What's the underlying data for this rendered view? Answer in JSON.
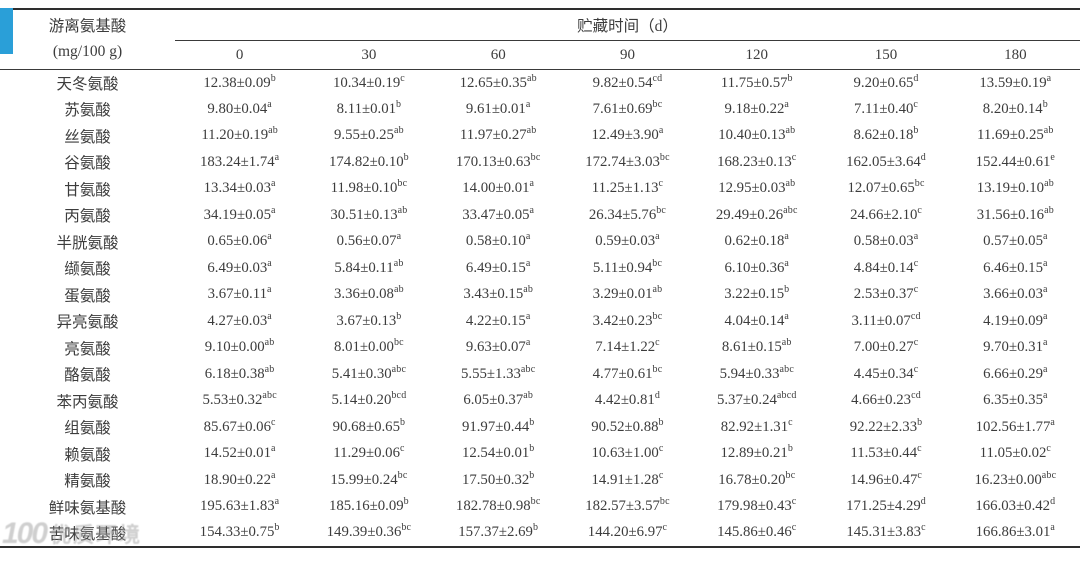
{
  "accent": {
    "corner_mark_color": "#2a9fd8"
  },
  "table": {
    "header": {
      "row_group_label_line1": "游离氨基酸",
      "row_group_label_line2": "(mg/100 g)",
      "span_label": "贮藏时间（d）",
      "columns": [
        "0",
        "30",
        "60",
        "90",
        "120",
        "150",
        "180"
      ]
    },
    "rows": [
      {
        "label": "天冬氨酸",
        "values": [
          {
            "v": "12.38±0.09",
            "s": "b"
          },
          {
            "v": "10.34±0.19",
            "s": "c"
          },
          {
            "v": "12.65±0.35",
            "s": "ab"
          },
          {
            "v": "9.82±0.54",
            "s": "cd"
          },
          {
            "v": "11.75±0.57",
            "s": "b"
          },
          {
            "v": "9.20±0.65",
            "s": "d"
          },
          {
            "v": "13.59±0.19",
            "s": "a"
          }
        ]
      },
      {
        "label": "苏氨酸",
        "values": [
          {
            "v": "9.80±0.04",
            "s": "a"
          },
          {
            "v": "8.11±0.01",
            "s": "b"
          },
          {
            "v": "9.61±0.01",
            "s": "a"
          },
          {
            "v": "7.61±0.69",
            "s": "bc"
          },
          {
            "v": "9.18±0.22",
            "s": "a"
          },
          {
            "v": "7.11±0.40",
            "s": "c"
          },
          {
            "v": "8.20±0.14",
            "s": "b"
          }
        ]
      },
      {
        "label": "丝氨酸",
        "values": [
          {
            "v": "11.20±0.19",
            "s": "ab"
          },
          {
            "v": "9.55±0.25",
            "s": "ab"
          },
          {
            "v": "11.97±0.27",
            "s": "ab"
          },
          {
            "v": "12.49±3.90",
            "s": "a"
          },
          {
            "v": "10.40±0.13",
            "s": "ab"
          },
          {
            "v": "8.62±0.18",
            "s": "b"
          },
          {
            "v": "11.69±0.25",
            "s": "ab"
          }
        ]
      },
      {
        "label": "谷氨酸",
        "values": [
          {
            "v": "183.24±1.74",
            "s": "a"
          },
          {
            "v": "174.82±0.10",
            "s": "b"
          },
          {
            "v": "170.13±0.63",
            "s": "bc"
          },
          {
            "v": "172.74±3.03",
            "s": "bc"
          },
          {
            "v": "168.23±0.13",
            "s": "c"
          },
          {
            "v": "162.05±3.64",
            "s": "d"
          },
          {
            "v": "152.44±0.61",
            "s": "e"
          }
        ]
      },
      {
        "label": "甘氨酸",
        "values": [
          {
            "v": "13.34±0.03",
            "s": "a"
          },
          {
            "v": "11.98±0.10",
            "s": "bc"
          },
          {
            "v": "14.00±0.01",
            "s": "a"
          },
          {
            "v": "11.25±1.13",
            "s": "c"
          },
          {
            "v": "12.95±0.03",
            "s": "ab"
          },
          {
            "v": "12.07±0.65",
            "s": "bc"
          },
          {
            "v": "13.19±0.10",
            "s": "ab"
          }
        ]
      },
      {
        "label": "丙氨酸",
        "values": [
          {
            "v": "34.19±0.05",
            "s": "a"
          },
          {
            "v": "30.51±0.13",
            "s": "ab"
          },
          {
            "v": "33.47±0.05",
            "s": "a"
          },
          {
            "v": "26.34±5.76",
            "s": "bc"
          },
          {
            "v": "29.49±0.26",
            "s": "abc"
          },
          {
            "v": "24.66±2.10",
            "s": "c"
          },
          {
            "v": "31.56±0.16",
            "s": "ab"
          }
        ]
      },
      {
        "label": "半胱氨酸",
        "values": [
          {
            "v": "0.65±0.06",
            "s": "a"
          },
          {
            "v": "0.56±0.07",
            "s": "a"
          },
          {
            "v": "0.58±0.10",
            "s": "a"
          },
          {
            "v": "0.59±0.03",
            "s": "a"
          },
          {
            "v": "0.62±0.18",
            "s": "a"
          },
          {
            "v": "0.58±0.03",
            "s": "a"
          },
          {
            "v": "0.57±0.05",
            "s": "a"
          }
        ]
      },
      {
        "label": "缬氨酸",
        "values": [
          {
            "v": "6.49±0.03",
            "s": "a"
          },
          {
            "v": "5.84±0.11",
            "s": "ab"
          },
          {
            "v": "6.49±0.15",
            "s": "a"
          },
          {
            "v": "5.11±0.94",
            "s": "bc"
          },
          {
            "v": "6.10±0.36",
            "s": "a"
          },
          {
            "v": "4.84±0.14",
            "s": "c"
          },
          {
            "v": "6.46±0.15",
            "s": "a"
          }
        ]
      },
      {
        "label": "蛋氨酸",
        "values": [
          {
            "v": "3.67±0.11",
            "s": "a"
          },
          {
            "v": "3.36±0.08",
            "s": "ab"
          },
          {
            "v": "3.43±0.15",
            "s": "ab"
          },
          {
            "v": "3.29±0.01",
            "s": "ab"
          },
          {
            "v": "3.22±0.15",
            "s": "b"
          },
          {
            "v": "2.53±0.37",
            "s": "c"
          },
          {
            "v": "3.66±0.03",
            "s": "a"
          }
        ]
      },
      {
        "label": "异亮氨酸",
        "values": [
          {
            "v": "4.27±0.03",
            "s": "a"
          },
          {
            "v": "3.67±0.13",
            "s": "b"
          },
          {
            "v": "4.22±0.15",
            "s": "a"
          },
          {
            "v": "3.42±0.23",
            "s": "bc"
          },
          {
            "v": "4.04±0.14",
            "s": "a"
          },
          {
            "v": "3.11±0.07",
            "s": "cd"
          },
          {
            "v": "4.19±0.09",
            "s": "a"
          }
        ]
      },
      {
        "label": "亮氨酸",
        "values": [
          {
            "v": "9.10±0.00",
            "s": "ab"
          },
          {
            "v": "8.01±0.00",
            "s": "bc"
          },
          {
            "v": "9.63±0.07",
            "s": "a"
          },
          {
            "v": "7.14±1.22",
            "s": "c"
          },
          {
            "v": "8.61±0.15",
            "s": "ab"
          },
          {
            "v": "7.00±0.27",
            "s": "c"
          },
          {
            "v": "9.70±0.31",
            "s": "a"
          }
        ]
      },
      {
        "label": "酪氨酸",
        "values": [
          {
            "v": "6.18±0.38",
            "s": "ab"
          },
          {
            "v": "5.41±0.30",
            "s": "abc"
          },
          {
            "v": "5.55±1.33",
            "s": "abc"
          },
          {
            "v": "4.77±0.61",
            "s": "bc"
          },
          {
            "v": "5.94±0.33",
            "s": "abc"
          },
          {
            "v": "4.45±0.34",
            "s": "c"
          },
          {
            "v": "6.66±0.29",
            "s": "a"
          }
        ]
      },
      {
        "label": "苯丙氨酸",
        "values": [
          {
            "v": "5.53±0.32",
            "s": "abc"
          },
          {
            "v": "5.14±0.20",
            "s": "bcd"
          },
          {
            "v": "6.05±0.37",
            "s": "ab"
          },
          {
            "v": "4.42±0.81",
            "s": "d"
          },
          {
            "v": "5.37±0.24",
            "s": "abcd"
          },
          {
            "v": "4.66±0.23",
            "s": "cd"
          },
          {
            "v": "6.35±0.35",
            "s": "a"
          }
        ]
      },
      {
        "label": "组氨酸",
        "values": [
          {
            "v": "85.67±0.06",
            "s": "c"
          },
          {
            "v": "90.68±0.65",
            "s": "b"
          },
          {
            "v": "91.97±0.44",
            "s": "b"
          },
          {
            "v": "90.52±0.88",
            "s": "b"
          },
          {
            "v": "82.92±1.31",
            "s": "c"
          },
          {
            "v": "92.22±2.33",
            "s": "b"
          },
          {
            "v": "102.56±1.77",
            "s": "a"
          }
        ]
      },
      {
        "label": "赖氨酸",
        "values": [
          {
            "v": "14.52±0.01",
            "s": "a"
          },
          {
            "v": "11.29±0.06",
            "s": "c"
          },
          {
            "v": "12.54±0.01",
            "s": "b"
          },
          {
            "v": "10.63±1.00",
            "s": "c"
          },
          {
            "v": "12.89±0.21",
            "s": "b"
          },
          {
            "v": "11.53±0.44",
            "s": "c"
          },
          {
            "v": "11.05±0.02",
            "s": "c"
          }
        ]
      },
      {
        "label": "精氨酸",
        "values": [
          {
            "v": "18.90±0.22",
            "s": "a"
          },
          {
            "v": "15.99±0.24",
            "s": "bc"
          },
          {
            "v": "17.50±0.32",
            "s": "b"
          },
          {
            "v": "14.91±1.28",
            "s": "c"
          },
          {
            "v": "16.78±0.20",
            "s": "bc"
          },
          {
            "v": "14.96±0.47",
            "s": "c"
          },
          {
            "v": "16.23±0.00",
            "s": "abc"
          }
        ]
      },
      {
        "label": "鲜味氨基酸",
        "values": [
          {
            "v": "195.63±1.83",
            "s": "a"
          },
          {
            "v": "185.16±0.09",
            "s": "b"
          },
          {
            "v": "182.78±0.98",
            "s": "bc"
          },
          {
            "v": "182.57±3.57",
            "s": "bc"
          },
          {
            "v": "179.98±0.43",
            "s": "c"
          },
          {
            "v": "171.25±4.29",
            "s": "d"
          },
          {
            "v": "166.03±0.42",
            "s": "d"
          }
        ]
      },
      {
        "label": "苦味氨基酸",
        "values": [
          {
            "v": "154.33±0.75",
            "s": "b"
          },
          {
            "v": "149.39±0.36",
            "s": "bc"
          },
          {
            "v": "157.37±2.69",
            "s": "b"
          },
          {
            "v": "144.20±6.97",
            "s": "c"
          },
          {
            "v": "145.86±0.46",
            "s": "c"
          },
          {
            "v": "145.31±3.83",
            "s": "c"
          },
          {
            "v": "166.86±3.01",
            "s": "a"
          }
        ]
      }
    ]
  },
  "watermark": {
    "logo_text": "100",
    "label_text": "优质环境"
  }
}
